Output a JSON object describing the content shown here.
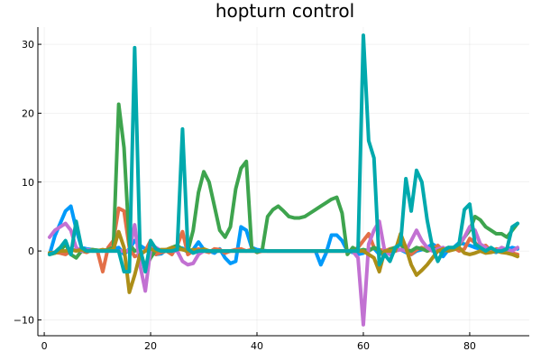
{
  "chart_data": {
    "type": "line",
    "title": "hopturn control",
    "xlabel": "",
    "ylabel": "",
    "xlim": [
      -1.2,
      91.2
    ],
    "ylim": [
      -12.3,
      32.5
    ],
    "xticks": [
      0,
      20,
      40,
      60,
      80
    ],
    "yticks": [
      -10,
      0,
      10,
      20,
      30
    ],
    "xtick_labels": [
      "0",
      "20",
      "40",
      "60",
      "80"
    ],
    "ytick_labels": [
      "−10",
      "0",
      "10",
      "20",
      "30"
    ],
    "grid": true,
    "legend": "none",
    "x": [
      1,
      2,
      3,
      4,
      5,
      6,
      7,
      8,
      9,
      10,
      11,
      12,
      13,
      14,
      15,
      16,
      17,
      18,
      19,
      20,
      21,
      22,
      23,
      24,
      25,
      26,
      27,
      28,
      29,
      30,
      31,
      32,
      33,
      34,
      35,
      36,
      37,
      38,
      39,
      40,
      41,
      42,
      43,
      44,
      45,
      46,
      47,
      48,
      49,
      50,
      51,
      52,
      53,
      54,
      55,
      56,
      57,
      58,
      59,
      60,
      61,
      62,
      63,
      64,
      65,
      66,
      67,
      68,
      69,
      70,
      71,
      72,
      73,
      74,
      75,
      76,
      77,
      78,
      79,
      80,
      81,
      82,
      83,
      84,
      85,
      86,
      87,
      88,
      89
    ],
    "series": [
      {
        "color": "#009AFA",
        "values": [
          -0.5,
          2.2,
          4.0,
          5.8,
          6.5,
          3.2,
          0.5,
          0.3,
          0.2,
          0.1,
          0.1,
          0.2,
          0.3,
          0.5,
          -0.5,
          0.3,
          1.5,
          0.8,
          0.3,
          0.2,
          -0.5,
          -0.4,
          0.2,
          0.3,
          0.5,
          0.4,
          -0.2,
          0.2,
          1.3,
          0.2,
          0.0,
          -0.3,
          0.3,
          -1.0,
          -1.8,
          -1.5,
          3.5,
          3.0,
          0.5,
          0.2,
          0.1,
          0.0,
          0.0,
          0.0,
          0.0,
          0.0,
          0.0,
          0.0,
          0.0,
          0.0,
          0.0,
          -2.0,
          -0.3,
          2.3,
          2.3,
          1.5,
          0.0,
          -0.2,
          -0.5,
          -0.3,
          0.2,
          0.4,
          -0.5,
          -0.3,
          0.2,
          0.3,
          0.2,
          -0.2,
          -0.5,
          0.0,
          0.2,
          0.5,
          1.0,
          0.5,
          -0.8,
          0.2,
          0.5,
          1.2,
          1.0,
          0.8,
          0.5,
          0.3,
          0.2,
          0.0,
          -0.2,
          0.3,
          0.2,
          0.5,
          0.3
        ]
      },
      {
        "color": "#E36F47",
        "values": [
          -0.3,
          -0.2,
          -0.3,
          -0.5,
          0.0,
          0.2,
          0.0,
          -0.2,
          0.2,
          0.0,
          -3.0,
          0.5,
          1.5,
          6.2,
          5.8,
          0.5,
          -0.8,
          -0.5,
          0.0,
          1.5,
          -0.5,
          -0.2,
          0.0,
          -0.5,
          0.8,
          2.8,
          -0.5,
          0.0,
          0.3,
          0.0,
          -0.2,
          0.3,
          0.2,
          -0.3,
          0.0,
          0.2,
          0.3,
          0.0,
          0.2,
          -0.2,
          0.0,
          0.0,
          0.0,
          0.0,
          0.0,
          0.0,
          0.0,
          0.0,
          0.0,
          0.0,
          0.0,
          0.0,
          0.0,
          0.0,
          0.0,
          0.0,
          0.0,
          0.0,
          0.5,
          1.5,
          2.5,
          0.5,
          0.2,
          0.0,
          0.3,
          0.5,
          1.0,
          0.0,
          -0.5,
          0.2,
          0.5,
          0.0,
          0.2,
          0.8,
          0.0,
          0.2,
          0.5,
          0.0,
          0.3,
          1.8,
          1.2,
          0.5,
          0.8,
          0.0,
          0.3,
          0.2,
          0.0,
          -0.3,
          -0.5
        ]
      },
      {
        "color": "#3EA44E",
        "values": [
          -0.5,
          -0.3,
          0.0,
          1.0,
          -0.5,
          -1.0,
          0.0,
          0.0,
          0.2,
          0.1,
          0.0,
          0.2,
          0.5,
          21.3,
          15.0,
          1.0,
          0.0,
          0.2,
          -2.5,
          -1.0,
          0.2,
          0.0,
          0.2,
          0.5,
          0.8,
          0.2,
          0.0,
          3.0,
          8.5,
          11.5,
          10.0,
          6.5,
          3.0,
          2.0,
          3.5,
          9.0,
          12.0,
          13.0,
          0.5,
          -0.2,
          0.2,
          5.0,
          6.0,
          6.5,
          5.8,
          5.0,
          4.8,
          4.8,
          5.0,
          5.5,
          6.0,
          6.5,
          7.0,
          7.5,
          7.8,
          5.5,
          -0.5,
          0.5,
          0.0,
          0.2,
          0.0,
          0.5,
          0.0,
          -0.5,
          0.2,
          0.5,
          1.0,
          0.2,
          0.0,
          0.5,
          0.3,
          0.0,
          0.5,
          0.0,
          0.2,
          0.5,
          0.3,
          0.8,
          2.0,
          3.0,
          5.0,
          4.5,
          3.5,
          3.0,
          2.5,
          2.5,
          2.0,
          3.0,
          4.0
        ]
      },
      {
        "color": "#C271D2",
        "values": [
          2.0,
          3.0,
          3.5,
          4.0,
          3.0,
          0.5,
          0.0,
          0.2,
          0.0,
          0.0,
          0.0,
          0.0,
          0.0,
          0.0,
          0.0,
          0.0,
          3.8,
          -2.0,
          -5.8,
          0.3,
          0.5,
          0.0,
          0.2,
          0.0,
          0.0,
          -1.5,
          -2.0,
          -1.8,
          -0.5,
          0.0,
          0.0,
          0.0,
          0.0,
          0.0,
          0.0,
          0.0,
          0.0,
          0.0,
          0.0,
          0.0,
          0.0,
          0.0,
          0.0,
          0.0,
          0.0,
          0.0,
          0.0,
          0.0,
          0.0,
          0.0,
          0.0,
          0.0,
          0.0,
          0.0,
          0.0,
          0.0,
          0.0,
          0.0,
          -1.0,
          -10.7,
          1.0,
          3.0,
          4.3,
          0.0,
          -0.5,
          0.0,
          0.2,
          0.0,
          1.5,
          3.0,
          1.5,
          0.5,
          0.0,
          0.3,
          0.5,
          0.0,
          0.3,
          1.0,
          2.0,
          3.5,
          3.0,
          1.0,
          0.5,
          0.0,
          0.0,
          0.5,
          0.2,
          0.0,
          0.5
        ]
      },
      {
        "color": "#AC8E18",
        "values": [
          -0.3,
          -0.3,
          0.0,
          0.0,
          0.2,
          0.0,
          0.2,
          0.0,
          0.0,
          0.0,
          0.2,
          0.0,
          0.2,
          2.8,
          0.5,
          -6.0,
          -3.5,
          -0.5,
          0.0,
          0.3,
          0.0,
          0.2,
          0.2,
          0.5,
          0.3,
          0.2,
          0.0,
          0.2,
          0.0,
          0.3,
          0.0,
          0.0,
          0.0,
          0.0,
          0.0,
          0.0,
          0.0,
          0.0,
          0.0,
          0.0,
          0.0,
          0.0,
          0.0,
          0.0,
          0.0,
          0.0,
          0.0,
          0.0,
          0.0,
          0.0,
          0.0,
          0.0,
          0.0,
          0.0,
          0.0,
          0.0,
          0.0,
          0.0,
          0.0,
          0.0,
          -0.5,
          -1.0,
          -3.0,
          0.0,
          0.0,
          0.0,
          2.5,
          0.5,
          -2.0,
          -3.5,
          -2.8,
          -2.0,
          -1.0,
          0.0,
          0.3,
          0.0,
          0.2,
          0.5,
          -0.3,
          -0.5,
          -0.3,
          0.0,
          -0.3,
          -0.2,
          0.0,
          -0.2,
          -0.3,
          -0.5,
          -0.8
        ]
      },
      {
        "color": "#00A9AD",
        "values": [
          -0.5,
          -0.2,
          0.5,
          1.5,
          -0.5,
          4.3,
          0.5,
          0.0,
          0.0,
          0.0,
          0.0,
          0.0,
          0.0,
          0.0,
          -3.0,
          -3.0,
          29.5,
          0.5,
          -3.0,
          1.5,
          0.3,
          0.0,
          0.0,
          0.0,
          0.2,
          17.7,
          0.3,
          -0.3,
          0.0,
          0.0,
          0.0,
          0.0,
          0.0,
          0.0,
          0.0,
          0.0,
          0.0,
          0.0,
          0.0,
          0.0,
          0.0,
          0.0,
          0.0,
          0.0,
          0.0,
          0.0,
          0.0,
          0.0,
          0.0,
          0.0,
          0.0,
          0.0,
          0.0,
          0.0,
          0.0,
          0.0,
          0.0,
          0.0,
          0.0,
          31.3,
          16.0,
          13.5,
          -2.0,
          -0.5,
          -1.5,
          0.5,
          1.0,
          10.5,
          5.8,
          11.7,
          10.0,
          4.5,
          0.5,
          -1.5,
          0.0,
          0.5,
          0.5,
          1.0,
          6.0,
          6.8,
          1.0,
          0.5,
          0.0,
          0.5,
          0.0,
          0.0,
          0.3,
          3.5,
          4.0
        ]
      }
    ]
  }
}
